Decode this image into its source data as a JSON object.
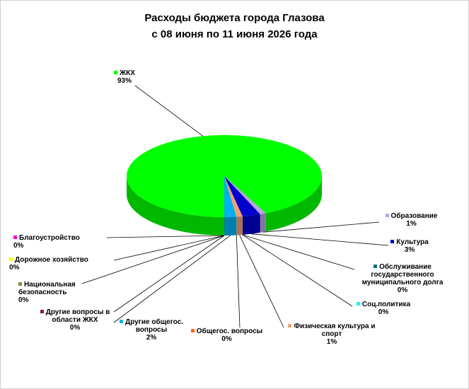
{
  "chart_data": {
    "type": "pie3d",
    "title": "Расходы бюджета города Глазова",
    "subtitle": "с 08 июня по 11 июня 2026 года",
    "categories": [
      "ЖКХ",
      "Образование",
      "Культура",
      "Обслуживание государственного муниципального  долга",
      "Соц.политика",
      "Физическая культура и спорт",
      "Общегос. вопросы",
      "Другие общегос. вопросы",
      "Другие вопросы в области ЖКХ",
      "Национальная безопасность",
      "Дорожное хозяйство",
      "Благоустройство"
    ],
    "values": [
      93,
      1,
      3,
      0,
      0,
      1,
      0,
      2,
      0,
      0,
      0,
      0
    ],
    "value_labels": [
      "93%",
      "1%",
      "3%",
      "0%",
      "0%",
      "1%",
      "0%",
      "2%",
      "0%",
      "0%",
      "0%",
      "0%"
    ],
    "colors": [
      "#00ff00",
      "#b9a3e3",
      "#0000cc",
      "#00707f",
      "#00ffff",
      "#f0a070",
      "#ff6600",
      "#00b0f0",
      "#7f1f4f",
      "#77933c",
      "#ffff00",
      "#ff00cc"
    ]
  }
}
